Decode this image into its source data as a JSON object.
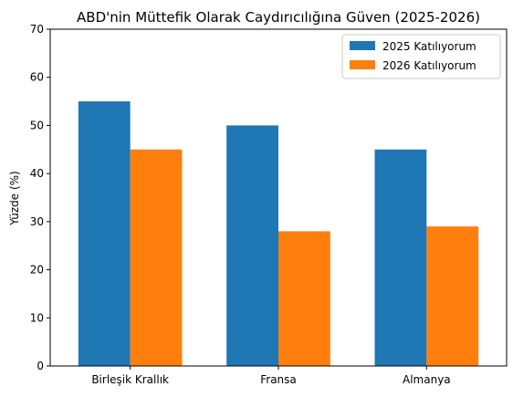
{
  "chart_data": {
    "type": "bar",
    "title": "ABD'nin Müttefik Olarak Caydırıcılığına Güven (2025-2026)",
    "xlabel": "",
    "ylabel": "Yüzde (%)",
    "categories": [
      "Birleşik Krallık",
      "Fransa",
      "Almanya"
    ],
    "series": [
      {
        "name": "2025 Katılıyorum",
        "values": [
          55,
          50,
          45
        ],
        "color": "#1f77b4"
      },
      {
        "name": "2026 Katılıyorum",
        "values": [
          45,
          28,
          29
        ],
        "color": "#ff7f0e"
      }
    ],
    "ylim": [
      0,
      70
    ],
    "yticks": [
      0,
      10,
      20,
      30,
      40,
      50,
      60,
      70
    ],
    "grid": false,
    "legend_position": "top-right"
  }
}
